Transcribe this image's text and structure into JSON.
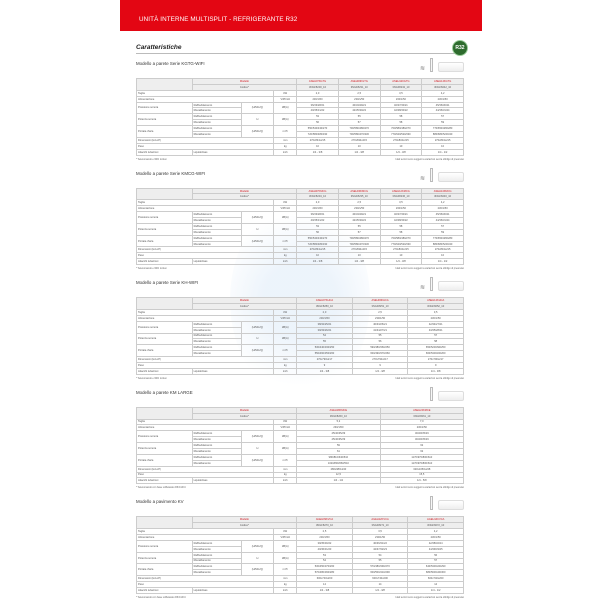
{
  "header": {
    "title": "UNITÀ INTERNE MULTISPLIT - REFRIGERANTE R32",
    "badge": "R32"
  },
  "heading": "Caratteristiche",
  "labels": {
    "modello": "Modello",
    "codice": "Codice*",
    "taglia": "Taglia",
    "alimentazione": "Alimentazione",
    "pressione": "Pressione sonora",
    "potenza": "Potenza sonora",
    "portata": "Portata d'aria",
    "dimensioni": "Dimensioni (HxLxP)",
    "peso": "Peso",
    "attacchi": "Attacchi tubazioni",
    "raff": "Raffreddamento",
    "risc": "Riscaldamento",
    "liqgas": "Liquido/Gas",
    "hml": "(H/M/L/Q)",
    "h": "H",
    "u_kw": "kW",
    "u_v": "V/Ph/Hz",
    "u_db": "dB(A)",
    "u_m3": "m³/h",
    "u_mm": "mm",
    "u_kg": "kg",
    "u_inch": "inch",
    "footer": "I dati tecnici sono soggetti a variazioni senza obbligo di preavviso"
  },
  "sections": [
    {
      "title": "Modello a parete Serie KGTG-WIFI",
      "wifi": true,
      "note": "* Telecomando e WiFi inclusi",
      "models": [
        "ASEH07KGTG",
        "ASEH09KGTG",
        "ASEH12KGTG",
        "ASEH14KGTG"
      ],
      "codes": [
        "3NGF8230_10",
        "3NGF8231_10",
        "3NGF8232_10",
        "3NGF8242_10"
      ],
      "taglia": [
        "2,0",
        "2,5",
        "3,5",
        "4,2"
      ],
      "alim": [
        "230/1/50",
        "230/1/50",
        "230/1/50",
        "230/1/50"
      ],
      "pr_raff": [
        "36/33/28/21",
        "40/34/29/21",
        "40/37/30/21",
        "45/36/30/21"
      ],
      "pr_risc": [
        "40/35/31/22",
        "42/35/30/22",
        "42/38/30/22",
        "44/36/31/24"
      ],
      "po_raff": [
        "53",
        "55",
        "58",
        "57"
      ],
      "po_risc": [
        "56",
        "57",
        "58",
        "59"
      ],
      "pa_raff": [
        "550/540/430/270",
        "700/580/480/270",
        "700/580/480/270",
        "770/650/480/280"
      ],
      "pa_risc": [
        "720/580/480/330",
        "700/580/470/330",
        "770/640/520/330",
        "880/680/520/340"
      ],
      "dim": [
        "270x834x215",
        "270x834x215",
        "270x834x215",
        "270x834x215"
      ],
      "peso": [
        "10",
        "10",
        "10",
        "10"
      ],
      "attacchi": [
        "1/4 - 3/8",
        "1/4 - 3/8",
        "1/4 - 3/8",
        "1/4 - 1/2"
      ]
    },
    {
      "title": "Modello a parete Serie KMCG-WIFI",
      "wifi": true,
      "note": "* Telecomando e WiFi inclusi",
      "models": [
        "ASEH07KMCG",
        "ASEH09KMCG",
        "ASEH12KMCG",
        "ASEH14KMCG"
      ],
      "codes": [
        "3NGF8234_10",
        "3NGF8235_10",
        "3NGF8236_10",
        "3NGF8246_10"
      ],
      "taglia": [
        "2,0",
        "2,5",
        "3,5",
        "4,2"
      ],
      "alim": [
        "230/1/50",
        "230/1/50",
        "230/1/50",
        "230/1/50"
      ],
      "pr_raff": [
        "36/33/28/21",
        "40/34/29/21",
        "40/37/30/21",
        "45/36/30/21"
      ],
      "pr_risc": [
        "40/35/31/22",
        "42/35/30/22",
        "42/38/30/22",
        "44/36/31/24"
      ],
      "po_raff": [
        "53",
        "55",
        "58",
        "57"
      ],
      "po_risc": [
        "56",
        "57",
        "58",
        "59"
      ],
      "pa_raff": [
        "550/540/430/270",
        "700/580/480/270",
        "700/580/480/270",
        "770/650/480/280"
      ],
      "pa_risc": [
        "720/580/480/330",
        "700/580/470/330",
        "770/640/520/330",
        "880/680/520/340"
      ],
      "dim": [
        "270x834x215",
        "270x834x215",
        "270x834x215",
        "270x834x215"
      ],
      "peso": [
        "10",
        "10",
        "10",
        "10"
      ],
      "attacchi": [
        "1/4 - 3/8",
        "1/4 - 3/8",
        "1/4 - 3/8",
        "1/4 - 1/2"
      ]
    },
    {
      "title": "Modello a parete Serie KH-WIFI",
      "wifi": true,
      "note": "* Telecomando e WiFi inclusi",
      "models": [
        "ASEH07KHCA",
        "ASEH09KHCA",
        "ASEH12KHCA"
      ],
      "codes": [
        "3NGF8250_10",
        "3NGF8251_10",
        "3NGF8252_10"
      ],
      "taglia": [
        "2,0",
        "2,5",
        "3,5"
      ],
      "alim": [
        "230/1/50",
        "230/1/50",
        "230/1/50"
      ],
      "pr_raff": [
        "38/32/25/21",
        "40/33/26/21",
        "42/34/27/21"
      ],
      "pr_risc": [
        "39/33/26/21",
        "41/34/27/21",
        "43/35/28/21"
      ],
      "po_raff": [
        "54",
        "55",
        "57"
      ],
      "po_risc": [
        "55",
        "56",
        "58"
      ],
      "pa_raff": [
        "530/440/330/250",
        "590/480/360/250",
        "650/520/390/250"
      ],
      "pa_risc": [
        "550/460/350/260",
        "600/490/370/260",
        "660/530/400/260"
      ],
      "dim": [
        "270x790x217",
        "270x790x217",
        "270x790x217"
      ],
      "peso": [
        "9",
        "9",
        "9"
      ],
      "attacchi": [
        "1/4 - 3/8",
        "1/4 - 3/8",
        "1/4 - 3/8"
      ]
    },
    {
      "title": "Modello a parete KM LARGE",
      "wifi": false,
      "note": "* Telecomando con base sofftwarato R6/C1/KU",
      "models": [
        "ASEH18KMCE",
        "ASEH24KMCE"
      ],
      "codes": [
        "3NGF8260_10",
        "3NGF8261_10"
      ],
      "taglia": [
        "5,2",
        "7,0"
      ],
      "alim": [
        "230/1/50",
        "230/1/50"
      ],
      "pr_raff": [
        "45/40/35/29",
        "46/40/35/29"
      ],
      "pr_risc": [
        "45/40/35/29",
        "46/40/35/29"
      ],
      "po_raff": [
        "59",
        "62"
      ],
      "po_risc": [
        "61",
        "62"
      ],
      "pa_raff": [
        "980/810/640/510",
        "1170/970/800/610"
      ],
      "pa_risc": [
        "1020/830/660/510",
        "1170/970/800/610"
      ],
      "dim": [
        "280x980x240",
        "320x1050x248"
      ],
      "peso": [
        "12,5",
        "15,5"
      ],
      "attacchi": [
        "1/4 - 1/2",
        "1/4 - 5/8"
      ]
    },
    {
      "title": "Modello a pavimento KV",
      "wifi": false,
      "note": "* Telecomando con base sofftwarato R6/C1/KU",
      "models": [
        "AGEH09KVCA",
        "AGEH12KVCA",
        "AGEH14KVCA"
      ],
      "codes": [
        "3NGF8270_10",
        "3NGF8271_10",
        "3NGF8272_10"
      ],
      "taglia": [
        "2,5",
        "3,5",
        "4,2"
      ],
      "alim": [
        "230/1/50",
        "230/1/50",
        "230/1/50"
      ],
      "pr_raff": [
        "39/35/30/22",
        "40/36/31/22",
        "42/38/32/24"
      ],
      "pr_risc": [
        "40/36/31/23",
        "42/37/32/23",
        "44/39/33/25"
      ],
      "po_raff": [
        "53",
        "54",
        "56"
      ],
      "po_risc": [
        "54",
        "55",
        "57"
      ],
      "pa_raff": [
        "530/450/370/260",
        "570/480/390/270",
        "640/530/420/290"
      ],
      "pa_risc": [
        "570/480/390/280",
        "600/500/410/290",
        "680/560/440/300"
      ],
      "dim": [
        "600x740x200",
        "600x740x200",
        "600x740x200"
      ],
      "peso": [
        "14",
        "14",
        "14"
      ],
      "attacchi": [
        "1/4 - 3/8",
        "1/4 - 3/8",
        "1/4 - 1/2"
      ]
    }
  ]
}
